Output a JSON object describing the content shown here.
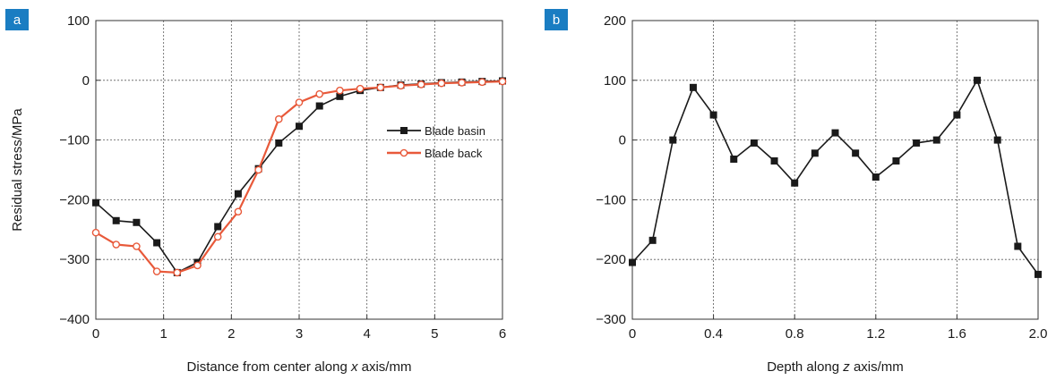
{
  "chart_data": [
    {
      "panel": "a",
      "type": "line",
      "xlabel_prefix": "Distance from center along ",
      "xlabel_var": "x",
      "xlabel_suffix": " axis/mm",
      "ylabel": "Residual stress/MPa",
      "xlim": [
        0,
        6
      ],
      "ylim": [
        -400,
        100
      ],
      "xticks": [
        0,
        1,
        2,
        3,
        4,
        5,
        6
      ],
      "xtick_labels": [
        "0",
        "1",
        "2",
        "3",
        "4",
        "5",
        "6"
      ],
      "yticks": [
        100,
        0,
        -100,
        -200,
        -300,
        -400
      ],
      "ytick_labels": [
        "100",
        "0",
        "−100",
        "−200",
        "−300",
        "−400"
      ],
      "grid": true,
      "legend_position": "right-center",
      "series": [
        {
          "name": "Blade basin",
          "color": "#1a1a1a",
          "marker": "filled-square",
          "x": [
            0,
            0.3,
            0.6,
            0.9,
            1.2,
            1.5,
            1.8,
            2.1,
            2.4,
            2.7,
            3.0,
            3.3,
            3.6,
            3.9,
            4.2,
            4.5,
            4.8,
            5.1,
            5.4,
            5.7,
            6.0
          ],
          "y": [
            -205,
            -235,
            -238,
            -272,
            -322,
            -305,
            -245,
            -190,
            -148,
            -105,
            -77,
            -43,
            -27,
            -17,
            -12,
            -8,
            -6,
            -4,
            -3,
            -2,
            -1
          ]
        },
        {
          "name": "Blade back",
          "color": "#e8593a",
          "marker": "open-circle",
          "x": [
            0,
            0.3,
            0.6,
            0.9,
            1.2,
            1.5,
            1.8,
            2.1,
            2.4,
            2.7,
            3.0,
            3.3,
            3.6,
            3.9,
            4.2,
            4.5,
            4.8,
            5.1,
            5.4,
            5.7,
            6.0
          ],
          "y": [
            -255,
            -275,
            -278,
            -320,
            -322,
            -310,
            -262,
            -220,
            -150,
            -65,
            -37,
            -23,
            -17,
            -14,
            -12,
            -9,
            -7,
            -5,
            -4,
            -3,
            -2
          ]
        }
      ]
    },
    {
      "panel": "b",
      "type": "line",
      "xlabel_prefix": "Depth along ",
      "xlabel_var": "z",
      "xlabel_suffix": " axis/mm",
      "ylabel": "",
      "xlim": [
        0,
        2.0
      ],
      "ylim": [
        -300,
        200
      ],
      "xticks": [
        0,
        0.4,
        0.8,
        1.2,
        1.6,
        2.0
      ],
      "xtick_labels": [
        "0",
        "0.4",
        "0.8",
        "1.2",
        "1.6",
        "2.0"
      ],
      "yticks": [
        200,
        100,
        0,
        -100,
        -200,
        -300
      ],
      "ytick_labels": [
        "200",
        "100",
        "0",
        "−100",
        "−200",
        "−300"
      ],
      "grid": true,
      "series": [
        {
          "color": "#1a1a1a",
          "marker": "filled-square",
          "x": [
            0,
            0.1,
            0.2,
            0.3,
            0.4,
            0.5,
            0.6,
            0.7,
            0.8,
            0.9,
            1.0,
            1.1,
            1.2,
            1.3,
            1.4,
            1.5,
            1.6,
            1.7,
            1.8,
            1.9,
            2.0
          ],
          "y": [
            -205,
            -168,
            0,
            88,
            42,
            -32,
            -5,
            -35,
            -72,
            -22,
            12,
            -22,
            -62,
            -35,
            -5,
            0,
            42,
            100,
            0,
            -178,
            -225
          ]
        }
      ]
    }
  ],
  "badge_color": "#1a7dc2"
}
